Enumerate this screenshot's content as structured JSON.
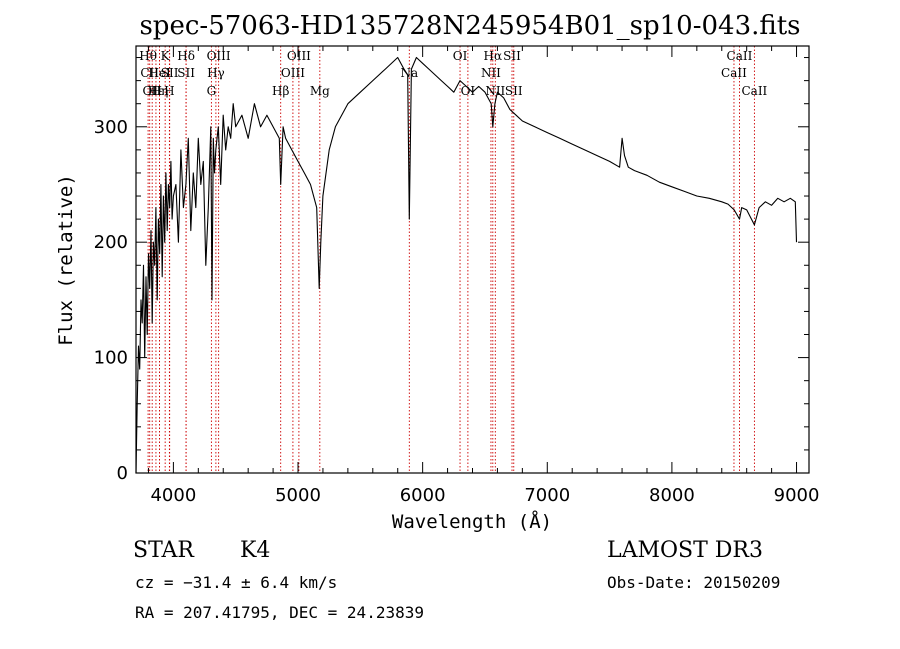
{
  "chart_data": {
    "type": "line",
    "title": "spec-57063-HD135728N245954B01_sp10-043.fits",
    "xlabel": "Wavelength (Å)",
    "ylabel": "Flux (relative)",
    "xlim": [
      3700,
      9100
    ],
    "ylim": [
      0,
      370
    ],
    "x_ticks": [
      4000,
      5000,
      6000,
      7000,
      8000,
      9000
    ],
    "y_ticks": [
      0,
      100,
      200,
      300
    ],
    "grid": false,
    "series": [
      {
        "x": [
          3700,
          3710,
          3720,
          3730,
          3740,
          3750,
          3760,
          3770,
          3780,
          3790,
          3800,
          3810,
          3820,
          3830,
          3840,
          3850,
          3860,
          3870,
          3880,
          3890,
          3900,
          3910,
          3920,
          3930,
          3940,
          3950,
          3960,
          3970,
          3980,
          3990,
          4000,
          4020,
          4040,
          4060,
          4080,
          4100,
          4120,
          4140,
          4160,
          4180,
          4200,
          4220,
          4240,
          4260,
          4280,
          4300,
          4310,
          4320,
          4330,
          4340,
          4360,
          4380,
          4400,
          4420,
          4440,
          4460,
          4480,
          4500,
          4550,
          4600,
          4650,
          4700,
          4750,
          4800,
          4850,
          4861,
          4880,
          4900,
          4950,
          5000,
          5050,
          5100,
          5150,
          5170,
          5183,
          5200,
          5250,
          5300,
          5400,
          5500,
          5600,
          5700,
          5800,
          5850,
          5880,
          5893,
          5910,
          5950,
          6000,
          6050,
          6100,
          6150,
          6200,
          6250,
          6300,
          6350,
          6400,
          6450,
          6500,
          6550,
          6563,
          6580,
          6600,
          6650,
          6700,
          6750,
          6800,
          6900,
          7000,
          7100,
          7200,
          7300,
          7400,
          7500,
          7580,
          7600,
          7620,
          7650,
          7700,
          7800,
          7900,
          8000,
          8100,
          8200,
          8300,
          8400,
          8450,
          8500,
          8542,
          8560,
          8600,
          8662,
          8700,
          8750,
          8800,
          8850,
          8900,
          8950,
          8990,
          9000
        ],
        "values": [
          0,
          60,
          110,
          90,
          150,
          130,
          180,
          100,
          170,
          120,
          190,
          160,
          210,
          130,
          200,
          180,
          230,
          150,
          220,
          190,
          250,
          170,
          240,
          200,
          260,
          210,
          250,
          230,
          270,
          220,
          240,
          250,
          200,
          280,
          230,
          250,
          290,
          210,
          260,
          230,
          290,
          250,
          270,
          180,
          230,
          300,
          150,
          290,
          260,
          280,
          300,
          250,
          310,
          280,
          300,
          290,
          320,
          300,
          310,
          290,
          320,
          300,
          310,
          300,
          290,
          250,
          300,
          290,
          280,
          270,
          260,
          250,
          230,
          160,
          200,
          240,
          280,
          300,
          320,
          330,
          340,
          350,
          360,
          350,
          345,
          220,
          350,
          360,
          355,
          350,
          345,
          340,
          335,
          330,
          340,
          335,
          330,
          335,
          330,
          320,
          300,
          320,
          330,
          325,
          315,
          310,
          305,
          300,
          295,
          290,
          285,
          280,
          275,
          270,
          265,
          290,
          275,
          265,
          262,
          258,
          252,
          248,
          244,
          240,
          238,
          235,
          233,
          228,
          220,
          230,
          228,
          215,
          230,
          235,
          232,
          238,
          235,
          238,
          235,
          200
        ]
      }
    ],
    "spectral_lines": [
      {
        "label": "Hθ",
        "x": 3797,
        "row": 0
      },
      {
        "label": "CII",
        "x": 3810,
        "row": 1
      },
      {
        "label": "OII",
        "x": 3830,
        "row": 2
      },
      {
        "label": "Hε",
        "x": 3860,
        "row": 2
      },
      {
        "label": "HeI",
        "x": 3889,
        "row": 1
      },
      {
        "label": "Hη",
        "x": 3889,
        "row": 2
      },
      {
        "label": "K",
        "x": 3934,
        "row": 0
      },
      {
        "label": "SII",
        "x": 3970,
        "row": 1
      },
      {
        "label": "H",
        "x": 3968,
        "row": 2
      },
      {
        "label": "Hδ",
        "x": 4102,
        "row": 0
      },
      {
        "label": "SII",
        "x": 4102,
        "row": 1
      },
      {
        "label": "OIII",
        "x": 4363,
        "row": 0
      },
      {
        "label": "Hγ",
        "x": 4341,
        "row": 1
      },
      {
        "label": "G",
        "x": 4305,
        "row": 2
      },
      {
        "label": "Hβ",
        "x": 4861,
        "row": 2
      },
      {
        "label": "OIII",
        "x": 5007,
        "row": 0
      },
      {
        "label": "OIII",
        "x": 4959,
        "row": 1
      },
      {
        "label": "Mg",
        "x": 5175,
        "row": 2
      },
      {
        "label": "Na",
        "x": 5893,
        "row": 1
      },
      {
        "label": "OI",
        "x": 6300,
        "row": 0
      },
      {
        "label": "OI",
        "x": 6363,
        "row": 2
      },
      {
        "label": "Hα",
        "x": 6563,
        "row": 0
      },
      {
        "label": "SII",
        "x": 6717,
        "row": 0
      },
      {
        "label": "NII",
        "x": 6548,
        "row": 1
      },
      {
        "label": "NII",
        "x": 6583,
        "row": 2
      },
      {
        "label": "SII",
        "x": 6731,
        "row": 2
      },
      {
        "label": "CaII",
        "x": 8542,
        "row": 0
      },
      {
        "label": "CaII",
        "x": 8498,
        "row": 1
      },
      {
        "label": "CaII",
        "x": 8662,
        "row": 2
      }
    ]
  },
  "info": {
    "object_class": "STAR",
    "subclass": "K4",
    "cz": "cz = −31.4 ± 6.4 km/s",
    "coords": "RA = 207.41795, DEC =  24.23839",
    "survey": "LAMOST DR3",
    "obs_date": "Obs-Date: 20150209"
  },
  "colors": {
    "line": "#000000",
    "marker": "#cc0000"
  }
}
